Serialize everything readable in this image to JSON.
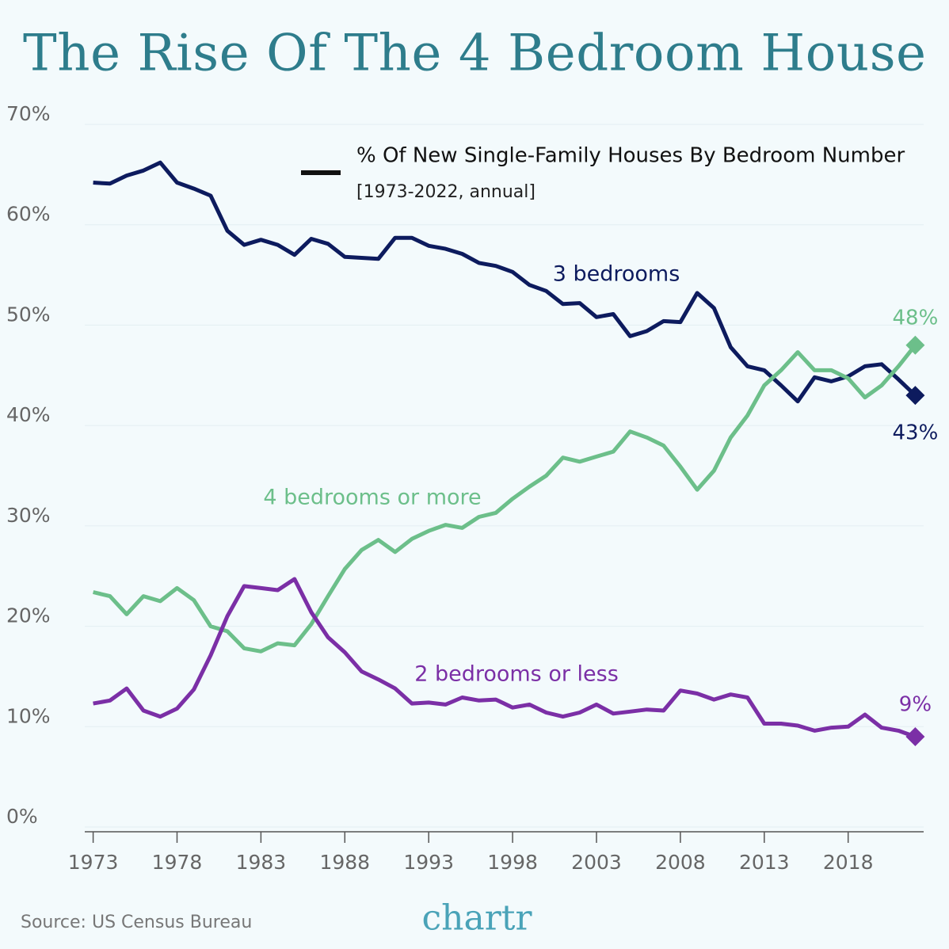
{
  "chart_data": {
    "type": "line",
    "title": "The Rise Of The 4 Bedroom House",
    "legend_title": "% Of New Single-Family Houses By Bedroom Number",
    "subtitle": "[1973-2022, annual]",
    "source": "Source: US Census Bureau",
    "brand": "chartr",
    "x": [
      1973,
      1974,
      1975,
      1976,
      1977,
      1978,
      1979,
      1980,
      1981,
      1982,
      1983,
      1984,
      1985,
      1986,
      1987,
      1988,
      1989,
      1990,
      1991,
      1992,
      1993,
      1994,
      1995,
      1996,
      1997,
      1998,
      1999,
      2000,
      2001,
      2002,
      2003,
      2004,
      2005,
      2006,
      2007,
      2008,
      2009,
      2010,
      2011,
      2012,
      2013,
      2014,
      2015,
      2016,
      2017,
      2018,
      2019,
      2020,
      2021,
      2022
    ],
    "xlim": [
      1972.5,
      2022.5
    ],
    "xticks": [
      1973,
      1978,
      1983,
      1988,
      1993,
      1998,
      2003,
      2008,
      2013,
      2018
    ],
    "ylim": [
      0,
      70
    ],
    "yticks": [
      {
        "value": 0,
        "label": "0%"
      },
      {
        "value": 10,
        "label": "10%"
      },
      {
        "value": 20,
        "label": "20%"
      },
      {
        "value": 30,
        "label": "30%"
      },
      {
        "value": 40,
        "label": "40%"
      },
      {
        "value": 50,
        "label": "50%"
      },
      {
        "value": 60,
        "label": "60%"
      },
      {
        "value": 70,
        "label": "70%"
      }
    ],
    "grid": true,
    "series": [
      {
        "name": "3 bedrooms",
        "color": "#0d1b5e",
        "values": [
          64.2,
          64.1,
          64.9,
          65.4,
          66.2,
          64.2,
          63.6,
          62.9,
          59.4,
          58.0,
          58.5,
          58.0,
          57.0,
          58.6,
          58.1,
          56.8,
          56.7,
          56.6,
          58.7,
          58.7,
          57.9,
          57.6,
          57.1,
          56.2,
          55.9,
          55.3,
          54.0,
          53.4,
          52.1,
          52.2,
          50.8,
          51.1,
          48.9,
          49.4,
          50.4,
          50.3,
          53.2,
          51.7,
          47.8,
          45.9,
          45.5,
          44.0,
          42.4,
          44.8,
          44.4,
          44.9,
          45.9,
          46.1,
          44.6,
          43.0
        ],
        "value_labels": [
          null,
          null,
          null,
          null,
          null,
          null,
          null,
          null,
          null,
          null,
          null,
          null,
          null,
          null,
          null,
          null,
          null,
          null,
          null,
          null,
          null,
          null,
          null,
          null,
          null,
          null,
          null,
          null,
          null,
          null,
          null,
          null,
          null,
          null,
          null,
          null,
          null,
          null,
          null,
          null,
          null,
          null,
          null,
          null,
          null,
          null,
          null,
          null,
          null,
          "43%"
        ]
      },
      {
        "name": "4 bedrooms or more",
        "color": "#6cbf8a",
        "values": [
          23.4,
          23.0,
          21.2,
          23.0,
          22.5,
          23.8,
          22.6,
          20.0,
          19.5,
          17.8,
          17.5,
          18.3,
          18.1,
          20.2,
          23.0,
          25.7,
          27.6,
          28.6,
          27.4,
          28.7,
          29.5,
          30.1,
          29.8,
          30.9,
          31.3,
          32.7,
          33.9,
          35.0,
          36.8,
          36.4,
          36.9,
          37.4,
          39.4,
          38.8,
          38.0,
          35.9,
          33.6,
          35.5,
          38.8,
          41.0,
          44.0,
          45.5,
          47.3,
          45.5,
          45.5,
          44.7,
          42.8,
          44.0,
          45.9,
          48.0
        ],
        "value_labels": [
          null,
          null,
          null,
          null,
          null,
          null,
          null,
          null,
          null,
          null,
          null,
          null,
          null,
          null,
          null,
          null,
          null,
          null,
          null,
          null,
          null,
          null,
          null,
          null,
          null,
          null,
          null,
          null,
          null,
          null,
          null,
          null,
          null,
          null,
          null,
          null,
          null,
          null,
          null,
          null,
          null,
          null,
          null,
          null,
          null,
          null,
          null,
          null,
          null,
          "48%"
        ]
      },
      {
        "name": "2 bedrooms or less",
        "color": "#7b2fa6",
        "values": [
          12.3,
          12.6,
          13.8,
          11.6,
          11.0,
          11.8,
          13.7,
          17.1,
          21.0,
          24.0,
          23.8,
          23.6,
          24.7,
          21.4,
          18.9,
          17.4,
          15.5,
          14.7,
          13.8,
          12.3,
          12.4,
          12.2,
          12.9,
          12.6,
          12.7,
          11.9,
          12.2,
          11.4,
          11.0,
          11.4,
          12.2,
          11.3,
          11.5,
          11.7,
          11.6,
          13.6,
          13.3,
          12.7,
          13.2,
          12.9,
          10.3,
          10.3,
          10.1,
          9.6,
          9.9,
          10.0,
          11.2,
          9.9,
          9.6,
          9.0
        ],
        "value_labels": [
          null,
          null,
          null,
          null,
          null,
          null,
          null,
          null,
          null,
          null,
          null,
          null,
          null,
          null,
          null,
          null,
          null,
          null,
          null,
          null,
          null,
          null,
          null,
          null,
          null,
          null,
          null,
          null,
          null,
          null,
          null,
          null,
          null,
          null,
          null,
          null,
          null,
          null,
          null,
          null,
          null,
          null,
          null,
          null,
          null,
          null,
          null,
          null,
          null,
          "9%"
        ]
      }
    ]
  }
}
